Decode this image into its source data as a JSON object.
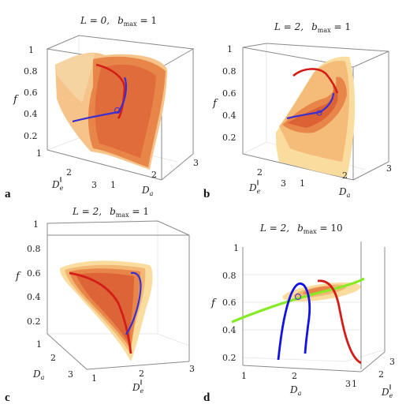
{
  "panels": [
    {
      "label": "a",
      "title": {
        "L": "L = 0,",
        "b": "b",
        "bsub": "max",
        "beq": " = 1"
      },
      "f_ticks": [
        "1",
        "0.8",
        "0.6",
        "0.4",
        "0.2"
      ],
      "axis2_ticks": [
        "1",
        "2",
        "3"
      ],
      "axis3_ticks": [
        "1",
        "2",
        "3"
      ],
      "axis2_label": "D",
      "axis2_sub": "e",
      "axis2_sup": "∥",
      "axis3_label": "D",
      "axis3_sub": "a",
      "f_label": "f"
    },
    {
      "label": "b",
      "title": {
        "L": "L = 2,",
        "b": "b",
        "bsub": "max",
        "beq": " = 1"
      },
      "f_ticks": [
        "1",
        "0.8",
        "0.6",
        "0.4",
        "0.2"
      ],
      "axis2_ticks": [
        "2",
        "3"
      ],
      "axis3_ticks": [
        "1",
        "2",
        "3"
      ],
      "axis2_label": "D",
      "axis2_sub": "e",
      "axis2_sup": "∥",
      "axis3_label": "D",
      "axis3_sub": "a",
      "f_label": "f"
    },
    {
      "label": "c",
      "title": {
        "L": "L = 2,",
        "b": "b",
        "bsub": "max",
        "beq": " = 1"
      },
      "f_ticks": [
        "1",
        "0.8",
        "0.6",
        "0.4",
        "0.2"
      ],
      "axis2_ticks": [
        "1",
        "2",
        "3"
      ],
      "axis3_ticks": [
        "1",
        "2",
        "3"
      ],
      "axis2_label": "D",
      "axis2_sub": "a",
      "axis2_sup": "",
      "axis3_label": "D",
      "axis3_sub": "e",
      "axis3_sup": "∥",
      "f_label": "f"
    },
    {
      "label": "d",
      "title": {
        "L": "L = 2,",
        "b": "b",
        "bsub": "max",
        "beq": " = 10"
      },
      "f_ticks": [
        "1",
        "0.8",
        "0.6",
        "0.4",
        "0.2"
      ],
      "axis2_ticks": [
        "1",
        "2",
        "3"
      ],
      "axis3_ticks": [
        "2",
        "3",
        "1"
      ],
      "axis2_label": "D",
      "axis2_sub": "a",
      "axis2_sup": "",
      "axis3_label": "D",
      "axis3_sub": "e",
      "axis3_sup": "∥",
      "f_label": "f"
    }
  ],
  "colors": {
    "light": "#f9dc9e",
    "mid": "#f3b774",
    "orange": "#e8864a",
    "dark": "#d8552f",
    "red": "#d41d18",
    "blue": "#3a2fd0",
    "blue_strong": "#1212e6",
    "green": "#86ea25",
    "box": "#8a8a8a"
  }
}
